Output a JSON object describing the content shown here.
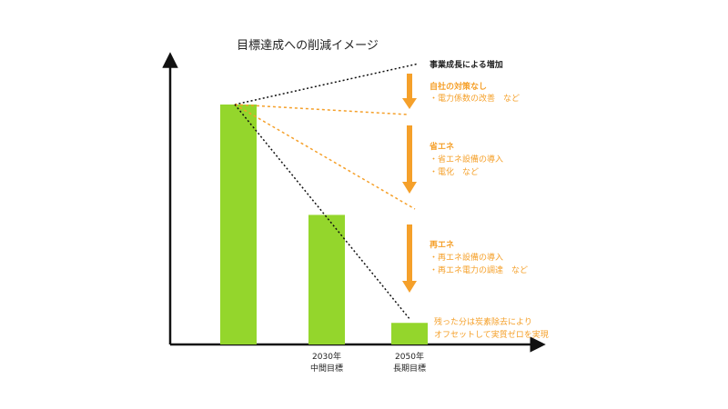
{
  "title": "目標達成への削減イメージ",
  "colors": {
    "bar": "#94d62c",
    "accent": "#f5a02a",
    "axis": "#111111",
    "text": "#222222"
  },
  "chart_data": {
    "type": "bar",
    "categories": [
      "",
      "2030年\n中間目標",
      "2050年\n長期目標"
    ],
    "values": [
      100,
      54,
      9
    ],
    "ylim": [
      0,
      112
    ]
  },
  "labels": {
    "growth": "事業成長による増加",
    "section1": {
      "head": "自社の対策なし",
      "items": [
        "・電力係数の改善　など"
      ]
    },
    "section2": {
      "head": "省エネ",
      "items": [
        "・省エネ設備の導入",
        "・電化　など"
      ]
    },
    "section3": {
      "head": "再エネ",
      "items": [
        "・再エネ設備の導入",
        "・再エネ電力の調達　など"
      ]
    },
    "offset": [
      "残った分は炭素除去により",
      "オフセットして実質ゼロを実現"
    ]
  },
  "x_labels": [
    {
      "line1": "2030年",
      "line2": "中間目標"
    },
    {
      "line1": "2050年",
      "line2": "長期目標"
    }
  ]
}
